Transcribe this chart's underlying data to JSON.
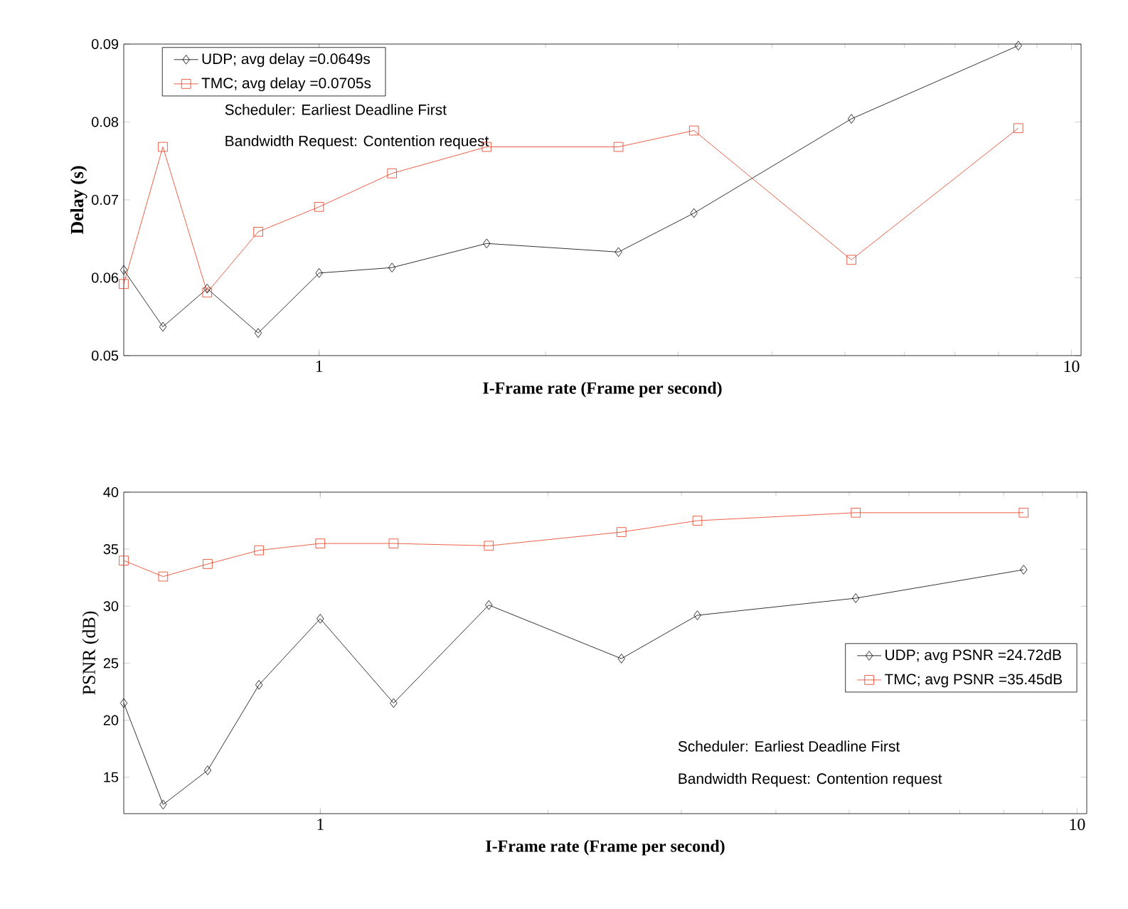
{
  "chart_data": [
    {
      "type": "line",
      "xlabel": "I-Frame rate (Frame per second)",
      "ylabel": "Delay (s)",
      "log": "x",
      "x": [
        0.55,
        0.62,
        0.71,
        0.83,
        1,
        1.25,
        1.67,
        2.5,
        3.15,
        5.1,
        8.5
      ],
      "xlim": [
        0.55,
        10.3
      ],
      "xticks": [
        1,
        10
      ],
      "ylim": [
        0.05,
        0.09
      ],
      "yticks": [
        0.05,
        0.06,
        0.07,
        0.08,
        0.09
      ],
      "legend": "top left",
      "grid": false,
      "series": [
        {
          "name": "UDP; avg delay =0.0649s",
          "color": "#000000",
          "marker": "diamond",
          "values": [
            0.061,
            0.0537,
            0.0586,
            0.0529,
            0.0606,
            0.0613,
            0.0644,
            0.0633,
            0.0683,
            0.0804,
            0.0898
          ]
        },
        {
          "name": "TMC; avg delay =0.0705s",
          "color": "#e8381a",
          "marker": "square",
          "values": [
            0.0592,
            0.0768,
            0.0581,
            0.0659,
            0.0691,
            0.0734,
            0.0768,
            0.0768,
            0.0789,
            0.0623,
            0.0792
          ]
        }
      ],
      "annotations": [
        "Scheduler: Earliest Deadline First",
        "Bandwidth Request: Contention request"
      ]
    },
    {
      "type": "line",
      "xlabel": "I-Frame rate (Frame per second)",
      "ylabel": "PSNR (dB)",
      "log": "x",
      "x": [
        0.55,
        0.62,
        0.71,
        0.83,
        1,
        1.25,
        1.67,
        2.5,
        3.15,
        5.1,
        8.5
      ],
      "xlim": [
        0.55,
        10.3
      ],
      "xticks": [
        1,
        10
      ],
      "ylim": [
        11.8,
        40
      ],
      "yticks": [
        15,
        20,
        25,
        30,
        35,
        40
      ],
      "legend": "right",
      "grid": false,
      "series": [
        {
          "name": "UDP; avg PSNR =24.72dB",
          "color": "#000000",
          "marker": "diamond",
          "values": [
            21.5,
            12.6,
            15.6,
            23.1,
            28.9,
            21.5,
            30.1,
            25.4,
            29.2,
            30.7,
            33.2
          ]
        },
        {
          "name": "TMC; avg PSNR =35.45dB",
          "color": "#e8381a",
          "marker": "square",
          "values": [
            34.0,
            32.6,
            33.7,
            34.9,
            35.5,
            35.5,
            35.3,
            36.5,
            37.5,
            38.2,
            38.2
          ]
        }
      ],
      "annotations": [
        "Scheduler: Earliest Deadline First",
        "Bandwidth Request: Contention request"
      ]
    }
  ]
}
